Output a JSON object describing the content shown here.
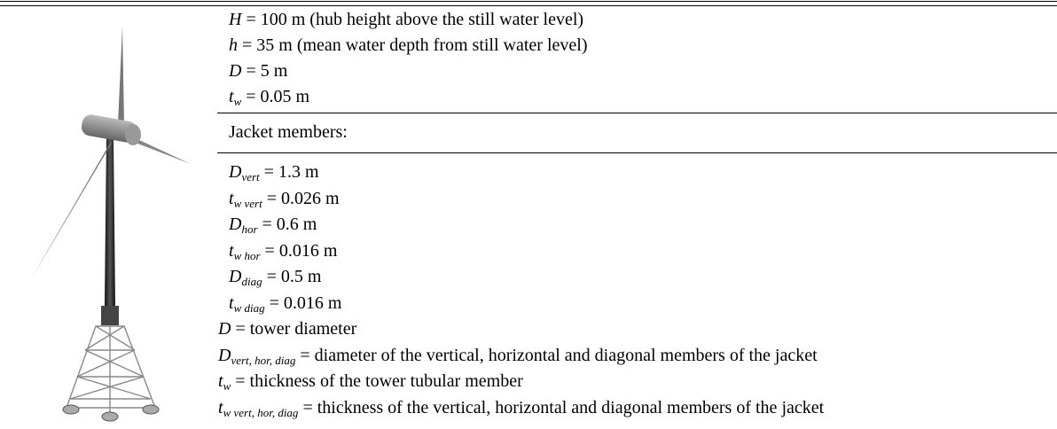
{
  "tower": [
    {
      "sym": "H",
      "rest": "= 100 m (hub height above the still water level)"
    },
    {
      "sym": "h",
      "rest": "= 35 m (mean water depth from still water level)"
    },
    {
      "sym": "D",
      "rest": "= 5 m"
    },
    {
      "sym": "t",
      "sub": "w",
      "rest": "= 0.05 m"
    }
  ],
  "jacket_heading": "Jacket members:",
  "jacket": [
    {
      "sym": "D",
      "sub": "vert",
      "rest": "= 1.3 m"
    },
    {
      "sym": "t",
      "sub": "w vert",
      "rest": "= 0.026 m"
    },
    {
      "sym": "D",
      "sub": "hor",
      "rest": "= 0.6 m"
    },
    {
      "sym": "t",
      "sub": "w hor",
      "rest": "= 0.016 m"
    },
    {
      "sym": "D",
      "sub": "diag",
      "rest": "= 0.5 m"
    },
    {
      "sym": "t",
      "sub": "w diag",
      "rest": "= 0.016 m"
    }
  ],
  "notes": [
    {
      "sym": "D",
      "rest": "= tower diameter"
    },
    {
      "sym": "D",
      "sub": "vert, hor, diag",
      "rest": "= diameter of the vertical, horizontal and diagonal members of the jacket"
    },
    {
      "sym": "t",
      "sub": "w",
      "rest": "= thickness of the tower tubular member"
    },
    {
      "sym": "t",
      "sub": "w vert, hor, diag",
      "rest": "= thickness of the vertical, horizontal and diagonal members of the jacket"
    }
  ]
}
